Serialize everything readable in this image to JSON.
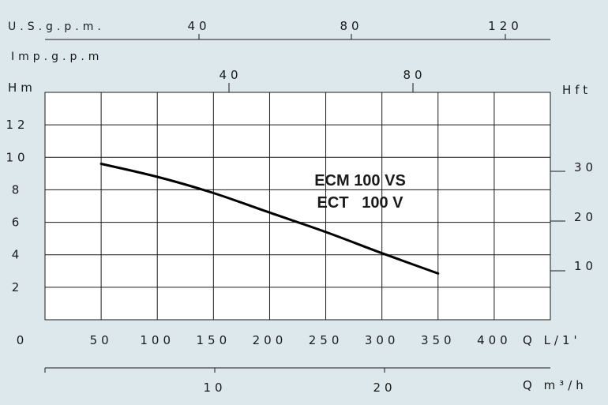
{
  "colors": {
    "background": "#dce8ec",
    "plot_area": "#ffffff",
    "grid": "#1a1a1a",
    "curve": "#000000"
  },
  "top_axes": {
    "usgpm": {
      "label": "U.S.g.p.m.",
      "ticks": [
        "40",
        "80",
        "120"
      ]
    },
    "impgpm": {
      "label": "Imp.g.p.m",
      "ticks": [
        "40",
        "80"
      ]
    }
  },
  "right_axis": {
    "label": "Hft",
    "ticks": [
      "30",
      "20",
      "10"
    ]
  },
  "bottom_axis_2": {
    "label": "Q m³/h",
    "ticks": [
      "10",
      "20"
    ]
  },
  "chart_data": {
    "type": "line",
    "title": "",
    "annotations": [
      "ECM 100 VS",
      "ECT   100 V"
    ],
    "xlabel": "Q L/1'",
    "ylabel": "Hm",
    "x_ticks": [
      "0",
      "50",
      "100",
      "150",
      "200",
      "250",
      "300",
      "350",
      "400"
    ],
    "y_ticks": [
      "2",
      "4",
      "6",
      "8",
      "10",
      "12"
    ],
    "xlim": [
      0,
      450
    ],
    "ylim": [
      0,
      14
    ],
    "grid": true,
    "series": [
      {
        "x": [
          50,
          100,
          150,
          200,
          250,
          300,
          350
        ],
        "y": [
          9.6,
          8.8,
          7.8,
          6.6,
          5.4,
          4.1,
          2.85
        ]
      }
    ]
  }
}
